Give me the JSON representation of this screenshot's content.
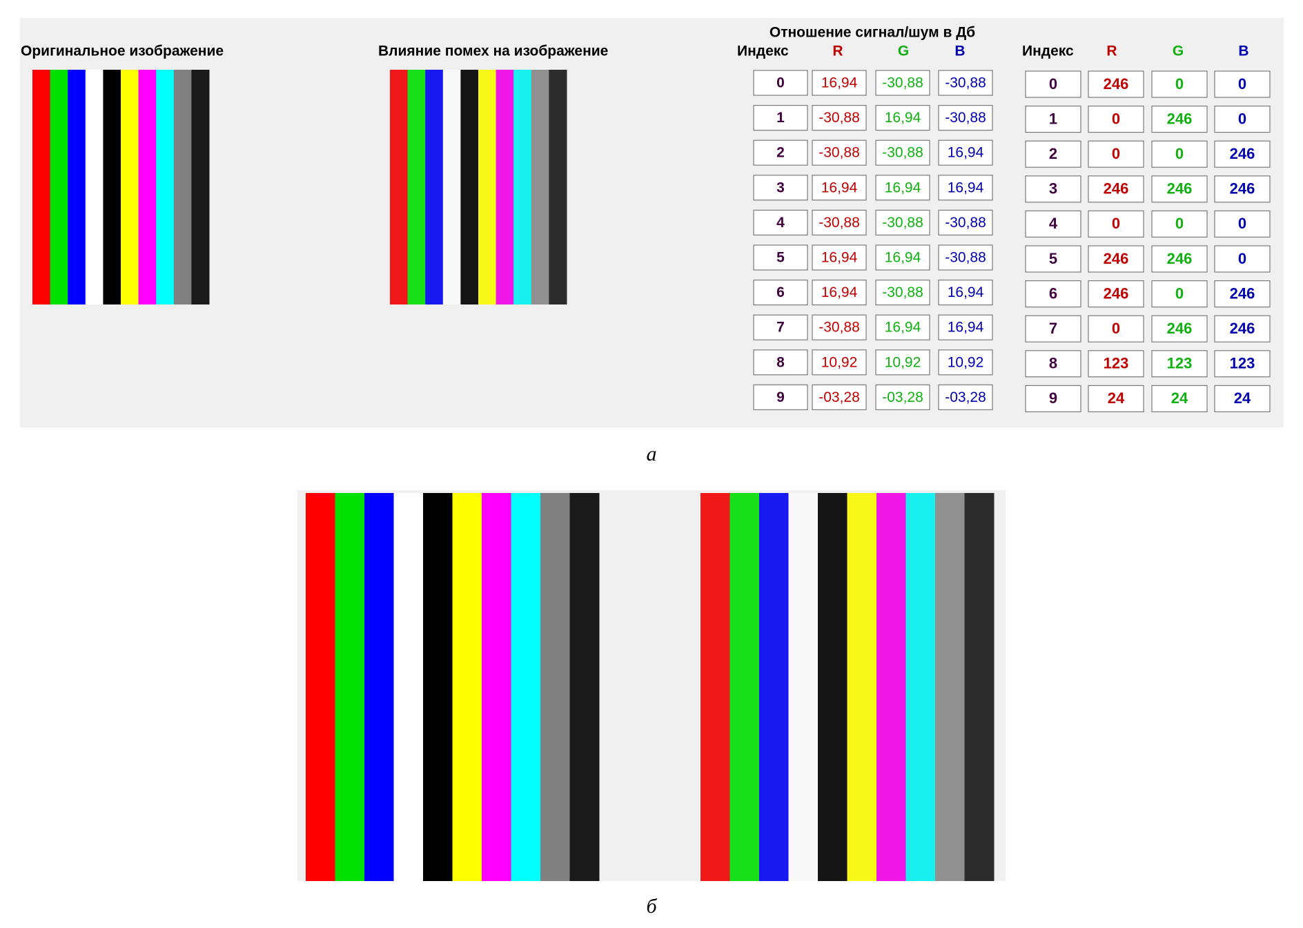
{
  "panel_a": {
    "title_original": "Оригинальное изображение",
    "title_noisy": "Влияние помех на изображение",
    "snr_table": {
      "title": "Отношение сигнал/шум в Дб",
      "headers": [
        "Индекс",
        "R",
        "G",
        "B"
      ],
      "rows": [
        [
          "0",
          "16,94",
          "-30,88",
          "-30,88"
        ],
        [
          "1",
          "-30,88",
          "16,94",
          "-30,88"
        ],
        [
          "2",
          "-30,88",
          "-30,88",
          "16,94"
        ],
        [
          "3",
          "16,94",
          "16,94",
          "16,94"
        ],
        [
          "4",
          "-30,88",
          "-30,88",
          "-30,88"
        ],
        [
          "5",
          "16,94",
          "16,94",
          "-30,88"
        ],
        [
          "6",
          "16,94",
          "-30,88",
          "16,94"
        ],
        [
          "7",
          "-30,88",
          "16,94",
          "16,94"
        ],
        [
          "8",
          "10,92",
          "10,92",
          "10,92"
        ],
        [
          "9",
          "-03,28",
          "-03,28",
          "-03,28"
        ]
      ]
    },
    "rgb_table": {
      "headers": [
        "Индекс",
        "R",
        "G",
        "B"
      ],
      "rows": [
        [
          0,
          246,
          0,
          0
        ],
        [
          1,
          0,
          246,
          0
        ],
        [
          2,
          0,
          0,
          246
        ],
        [
          3,
          246,
          246,
          246
        ],
        [
          4,
          0,
          0,
          0
        ],
        [
          5,
          246,
          246,
          0
        ],
        [
          6,
          246,
          0,
          246
        ],
        [
          7,
          0,
          246,
          246
        ],
        [
          8,
          123,
          123,
          123
        ],
        [
          9,
          24,
          24,
          24
        ]
      ]
    },
    "caption": "а"
  },
  "panel_b": {
    "caption": "б"
  }
}
